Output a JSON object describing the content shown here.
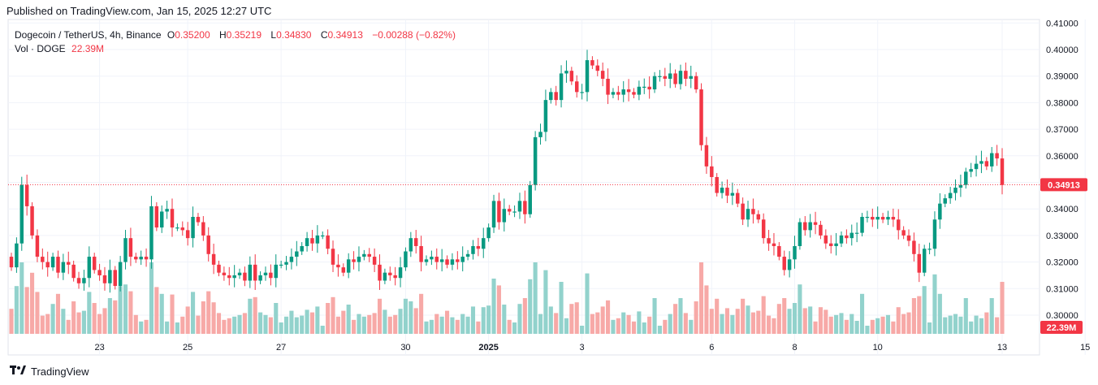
{
  "header": {
    "published": "Published on TradingView.com, Jan 15, 2025 12:27 UTC"
  },
  "legend": {
    "symbol": "Dogecoin / TetherUS, 4h, Binance",
    "o_label": "O",
    "o_value": "0.35200",
    "h_label": "H",
    "h_value": "0.35219",
    "l_label": "L",
    "l_value": "0.34830",
    "c_label": "C",
    "c_value": "0.34913",
    "change": "−0.00288 (−0.82%)",
    "vol_label": "Vol · DOGE",
    "vol_value": "22.39M"
  },
  "price_badge": "0.34913",
  "volume_badge": "22.39M",
  "footer": {
    "brand": "TradingView"
  },
  "colors": {
    "up": "#089981",
    "down": "#F23645",
    "vol_up": "#92D2CC",
    "vol_down": "#F7A9A7",
    "grid": "#F0F3FA"
  },
  "chart_data": {
    "type": "candlestick",
    "symbol": "Dogecoin / TetherUS",
    "interval": "4h",
    "exchange": "Binance",
    "x_tick_labels": [
      "23",
      "25",
      "27",
      "30",
      "2025",
      "3",
      "6",
      "8",
      "10",
      "13",
      "15"
    ],
    "y_ticks": [
      "0.30000",
      "0.31000",
      "0.32000",
      "0.33000",
      "0.34000",
      "0.35000",
      "0.36000",
      "0.37000",
      "0.38000",
      "0.39000",
      "0.40000",
      "0.41000"
    ],
    "ylim": [
      0.293,
      0.411
    ],
    "last_price": 0.34913,
    "grid": true,
    "closes": [
      0.318,
      0.327,
      0.349,
      0.341,
      0.33,
      0.322,
      0.32,
      0.318,
      0.322,
      0.316,
      0.32,
      0.319,
      0.314,
      0.312,
      0.314,
      0.322,
      0.317,
      0.315,
      0.312,
      0.317,
      0.311,
      0.32,
      0.329,
      0.322,
      0.321,
      0.322,
      0.321,
      0.341,
      0.333,
      0.339,
      0.34,
      0.333,
      0.333,
      0.332,
      0.329,
      0.337,
      0.335,
      0.33,
      0.323,
      0.319,
      0.316,
      0.315,
      0.314,
      0.315,
      0.316,
      0.313,
      0.319,
      0.313,
      0.315,
      0.316,
      0.314,
      0.319,
      0.319,
      0.32,
      0.322,
      0.324,
      0.326,
      0.329,
      0.327,
      0.33,
      0.33,
      0.325,
      0.319,
      0.318,
      0.316,
      0.321,
      0.32,
      0.322,
      0.323,
      0.322,
      0.319,
      0.313,
      0.316,
      0.315,
      0.314,
      0.318,
      0.324,
      0.329,
      0.326,
      0.32,
      0.321,
      0.322,
      0.32,
      0.321,
      0.319,
      0.321,
      0.32,
      0.322,
      0.323,
      0.326,
      0.325,
      0.329,
      0.333,
      0.343,
      0.335,
      0.34,
      0.339,
      0.339,
      0.343,
      0.338,
      0.349,
      0.367,
      0.369,
      0.381,
      0.384,
      0.381,
      0.391,
      0.392,
      0.388,
      0.384,
      0.384,
      0.396,
      0.394,
      0.392,
      0.389,
      0.383,
      0.384,
      0.383,
      0.385,
      0.384,
      0.383,
      0.386,
      0.386,
      0.385,
      0.39,
      0.39,
      0.389,
      0.391,
      0.387,
      0.392,
      0.389,
      0.39,
      0.385,
      0.364,
      0.356,
      0.352,
      0.346,
      0.348,
      0.345,
      0.346,
      0.342,
      0.336,
      0.34,
      0.338,
      0.336,
      0.329,
      0.327,
      0.326,
      0.322,
      0.317,
      0.321,
      0.326,
      0.335,
      0.332,
      0.335,
      0.334,
      0.33,
      0.327,
      0.326,
      0.327,
      0.33,
      0.329,
      0.331,
      0.331,
      0.337,
      0.337,
      0.336,
      0.337,
      0.336,
      0.337,
      0.336,
      0.332,
      0.33,
      0.328,
      0.323,
      0.316,
      0.325,
      0.325,
      0.336,
      0.342,
      0.344,
      0.346,
      0.348,
      0.349,
      0.354,
      0.355,
      0.357,
      0.358,
      0.356,
      0.361,
      0.359,
      0.349
    ]
  }
}
